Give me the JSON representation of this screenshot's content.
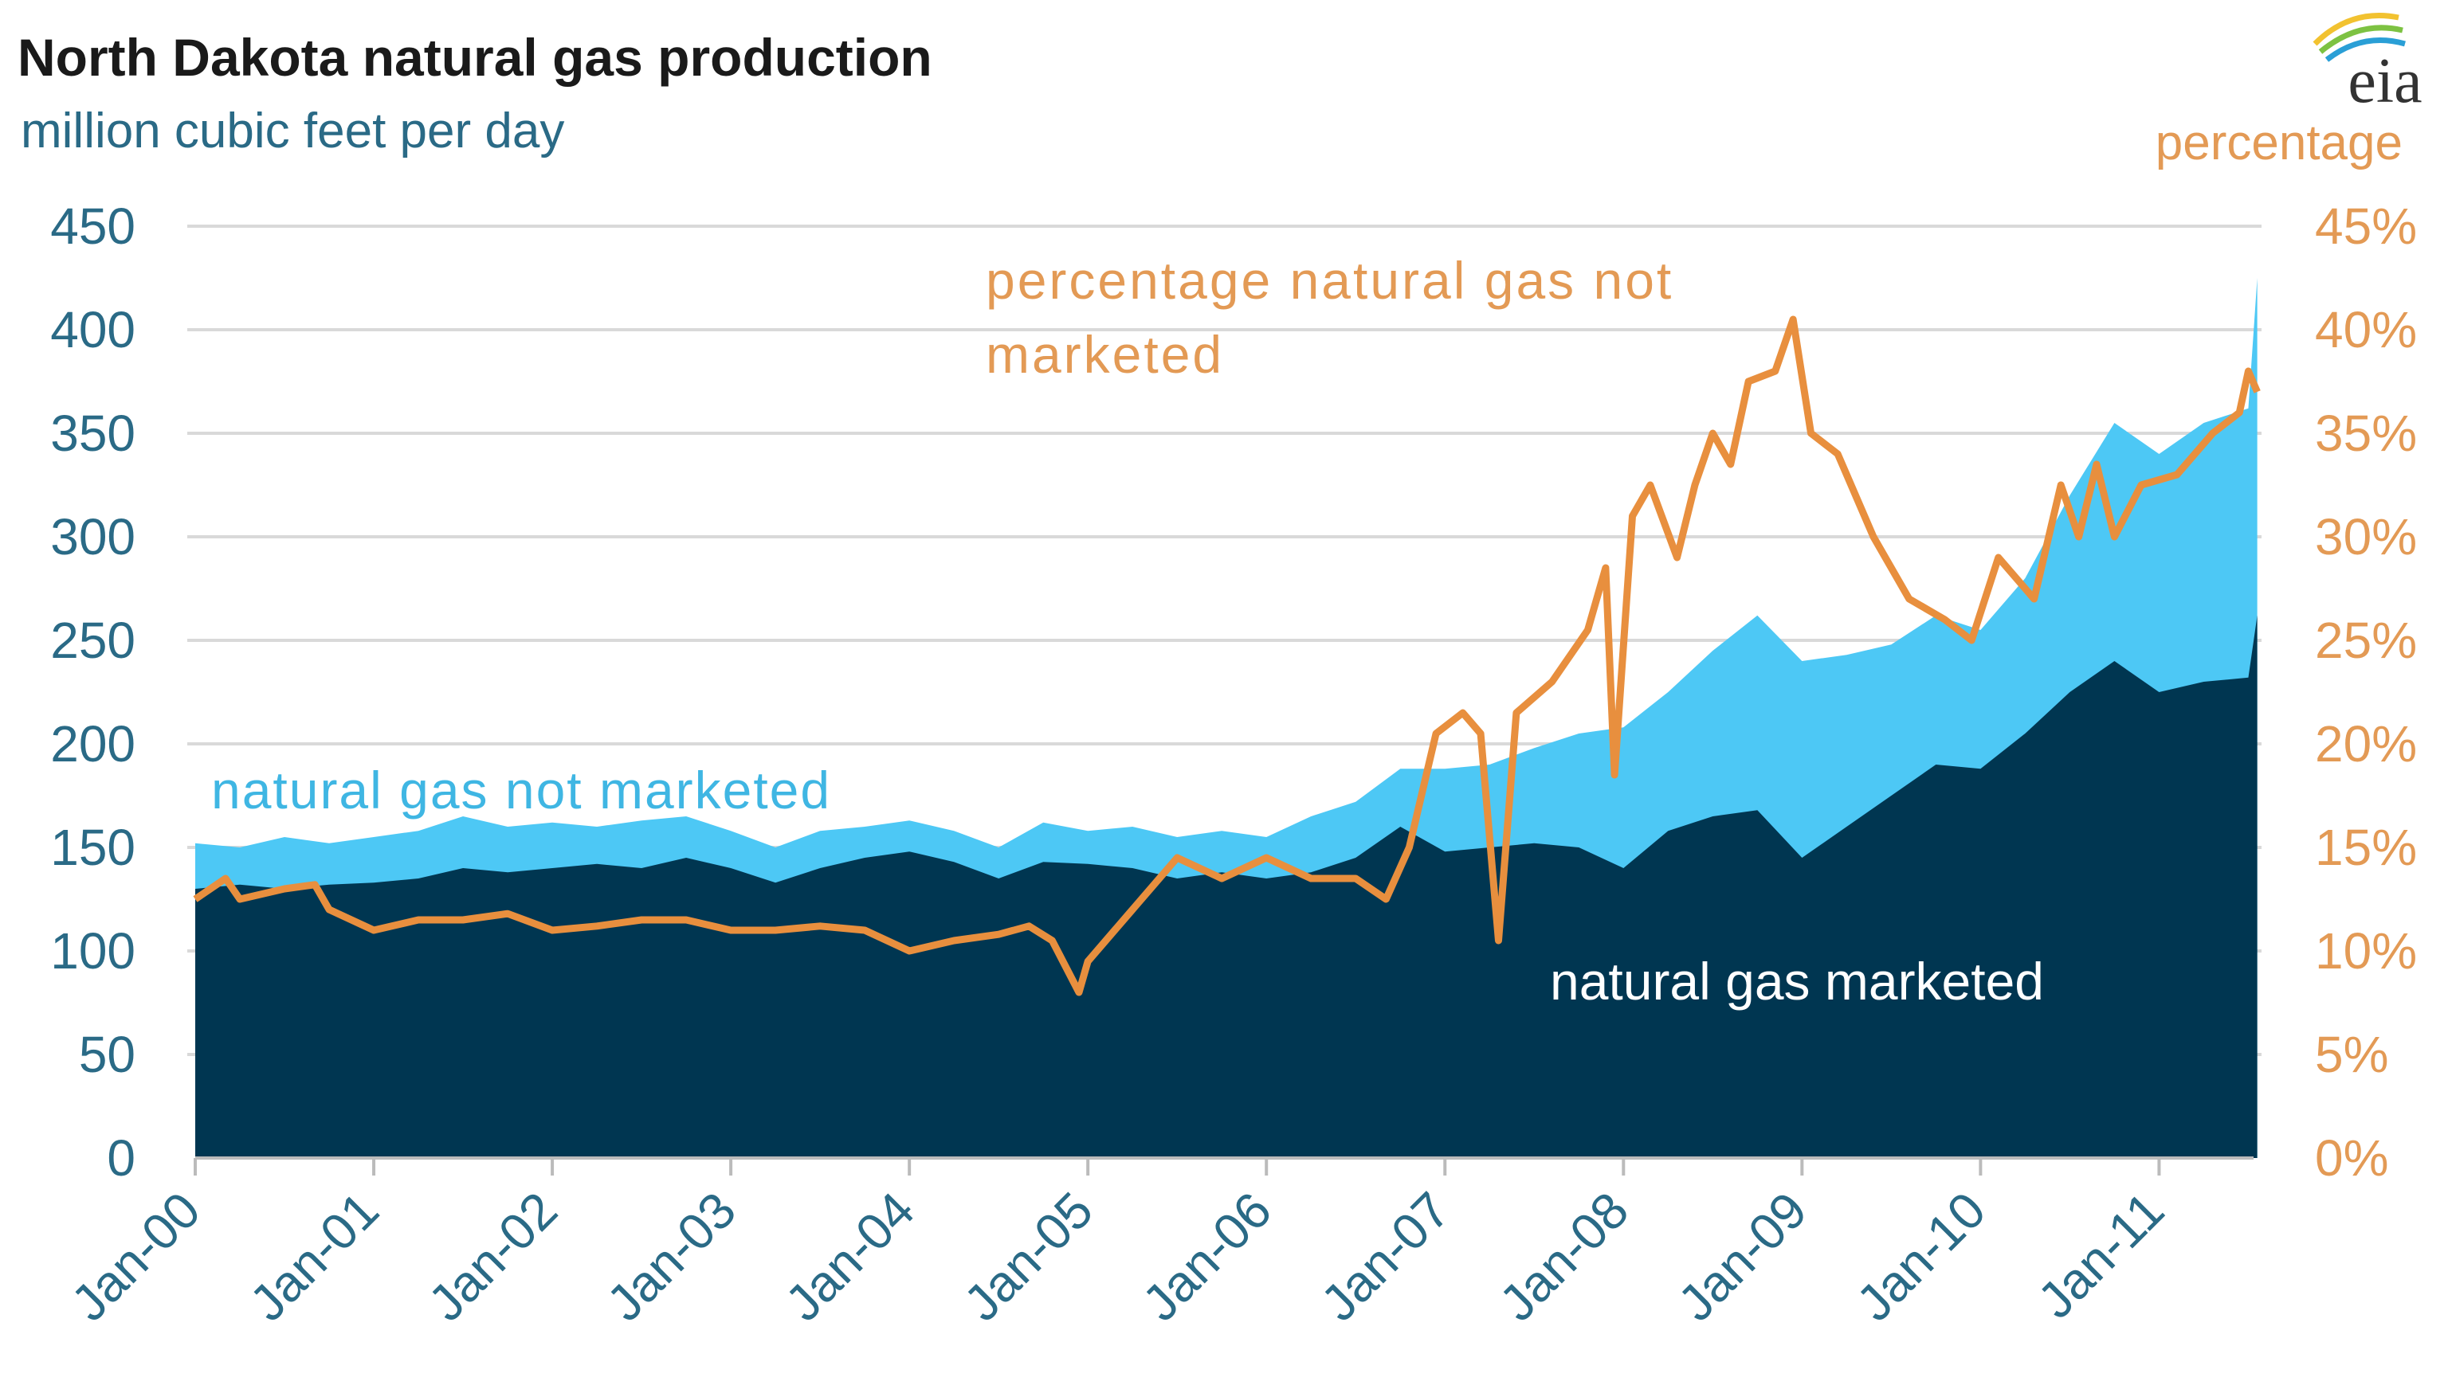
{
  "chart_data": {
    "type": "area",
    "title": "North Dakota natural gas production",
    "ylabel_left": "million cubic feet per day",
    "ylabel_right": "percentage",
    "logo": "eia",
    "ylim_left": [
      0,
      450
    ],
    "ylim_right": [
      0,
      45
    ],
    "yticks_left": [
      "0",
      "50",
      "100",
      "150",
      "200",
      "250",
      "300",
      "350",
      "400",
      "450"
    ],
    "yticks_right": [
      "0%",
      "5%",
      "10%",
      "15%",
      "20%",
      "25%",
      "30%",
      "35%",
      "40%",
      "45%"
    ],
    "xticks": [
      "Jan-00",
      "Jan-01",
      "Jan-02",
      "Jan-03",
      "Jan-04",
      "Jan-05",
      "Jan-06",
      "Jan-07",
      "Jan-08",
      "Jan-09",
      "Jan-10",
      "Jan-11"
    ],
    "grid": true,
    "colors": {
      "marketed": "#003651",
      "not_marketed": "#4dc8f5",
      "percentage": "#e88f3e",
      "left_axis": "#2a6a86",
      "right_axis": "#e39a55"
    },
    "annotations": {
      "not_marketed": "natural gas not marketed",
      "marketed": "natural gas marketed",
      "percentage_line1": "percentage natural gas not",
      "percentage_line2": "marketed"
    },
    "series": [
      {
        "name": "natural gas marketed",
        "axis": "left",
        "x": [
          2000,
          2000.25,
          2000.5,
          2000.75,
          2001,
          2001.25,
          2001.5,
          2001.75,
          2002,
          2002.25,
          2002.5,
          2002.75,
          2003,
          2003.25,
          2003.5,
          2003.75,
          2004,
          2004.25,
          2004.5,
          2004.75,
          2005,
          2005.25,
          2005.5,
          2005.75,
          2006,
          2006.25,
          2006.5,
          2006.75,
          2007,
          2007.25,
          2007.5,
          2007.75,
          2008,
          2008.25,
          2008.5,
          2008.75,
          2009,
          2009.25,
          2009.5,
          2009.75,
          2010,
          2010.25,
          2010.5,
          2010.75,
          2011,
          2011.25,
          2011.5,
          2011.55
        ],
        "values": [
          130,
          132,
          130,
          132,
          133,
          135,
          140,
          138,
          140,
          142,
          140,
          145,
          140,
          133,
          140,
          145,
          148,
          143,
          135,
          143,
          142,
          140,
          135,
          138,
          135,
          138,
          145,
          160,
          148,
          150,
          152,
          150,
          140,
          158,
          165,
          168,
          145,
          160,
          175,
          190,
          188,
          205,
          225,
          240,
          225,
          230,
          232,
          262
        ]
      },
      {
        "name": "natural gas not marketed",
        "axis": "left",
        "stacked_total": true,
        "x": [
          2000,
          2000.25,
          2000.5,
          2000.75,
          2001,
          2001.25,
          2001.5,
          2001.75,
          2002,
          2002.25,
          2002.5,
          2002.75,
          2003,
          2003.25,
          2003.5,
          2003.75,
          2004,
          2004.25,
          2004.5,
          2004.75,
          2005,
          2005.25,
          2005.5,
          2005.75,
          2006,
          2006.25,
          2006.5,
          2006.75,
          2007,
          2007.25,
          2007.5,
          2007.75,
          2008,
          2008.25,
          2008.5,
          2008.75,
          2009,
          2009.25,
          2009.5,
          2009.75,
          2010,
          2010.25,
          2010.5,
          2010.75,
          2011,
          2011.25,
          2011.5,
          2011.55
        ],
        "values": [
          152,
          150,
          155,
          152,
          155,
          158,
          165,
          160,
          162,
          160,
          163,
          165,
          158,
          150,
          158,
          160,
          163,
          158,
          150,
          162,
          158,
          160,
          155,
          158,
          155,
          165,
          172,
          188,
          188,
          190,
          198,
          205,
          208,
          225,
          245,
          262,
          240,
          243,
          248,
          262,
          255,
          280,
          320,
          355,
          340,
          355,
          362,
          425
        ]
      },
      {
        "name": "percentage natural gas not marketed",
        "axis": "right",
        "x": [
          2000,
          2000.17,
          2000.25,
          2000.5,
          2000.67,
          2000.75,
          2001,
          2001.25,
          2001.5,
          2001.75,
          2002,
          2002.25,
          2002.5,
          2002.75,
          2003,
          2003.25,
          2003.5,
          2003.75,
          2004,
          2004.25,
          2004.5,
          2004.67,
          2004.8,
          2004.95,
          2005,
          2005.25,
          2005.5,
          2005.75,
          2006,
          2006.25,
          2006.5,
          2006.67,
          2006.8,
          2006.95,
          2007.1,
          2007.2,
          2007.3,
          2007.4,
          2007.6,
          2007.8,
          2007.9,
          2007.95,
          2008.05,
          2008.15,
          2008.3,
          2008.4,
          2008.5,
          2008.6,
          2008.7,
          2008.85,
          2008.95,
          2009.05,
          2009.2,
          2009.4,
          2009.6,
          2009.8,
          2009.95,
          2010.1,
          2010.3,
          2010.45,
          2010.55,
          2010.65,
          2010.75,
          2010.9,
          2011.1,
          2011.3,
          2011.45,
          2011.5,
          2011.55
        ],
        "values": [
          12.5,
          13.5,
          12.5,
          13,
          13.2,
          12,
          11,
          11.5,
          11.5,
          11.8,
          11,
          11.2,
          11.5,
          11.5,
          11,
          11,
          11.2,
          11,
          10,
          10.5,
          10.8,
          11.2,
          10.5,
          8,
          9.5,
          12,
          14.5,
          13.5,
          14.5,
          13.5,
          13.5,
          12.5,
          15,
          20.5,
          21.5,
          20.5,
          10.5,
          21.5,
          23,
          25.5,
          28.5,
          18.5,
          31,
          32.5,
          29,
          32.5,
          35,
          33.5,
          37.5,
          38,
          40.5,
          35,
          34,
          30,
          27,
          26,
          25,
          29,
          27,
          32.5,
          30,
          33.5,
          30,
          32.5,
          33,
          35,
          36,
          38,
          37
        ]
      }
    ]
  }
}
